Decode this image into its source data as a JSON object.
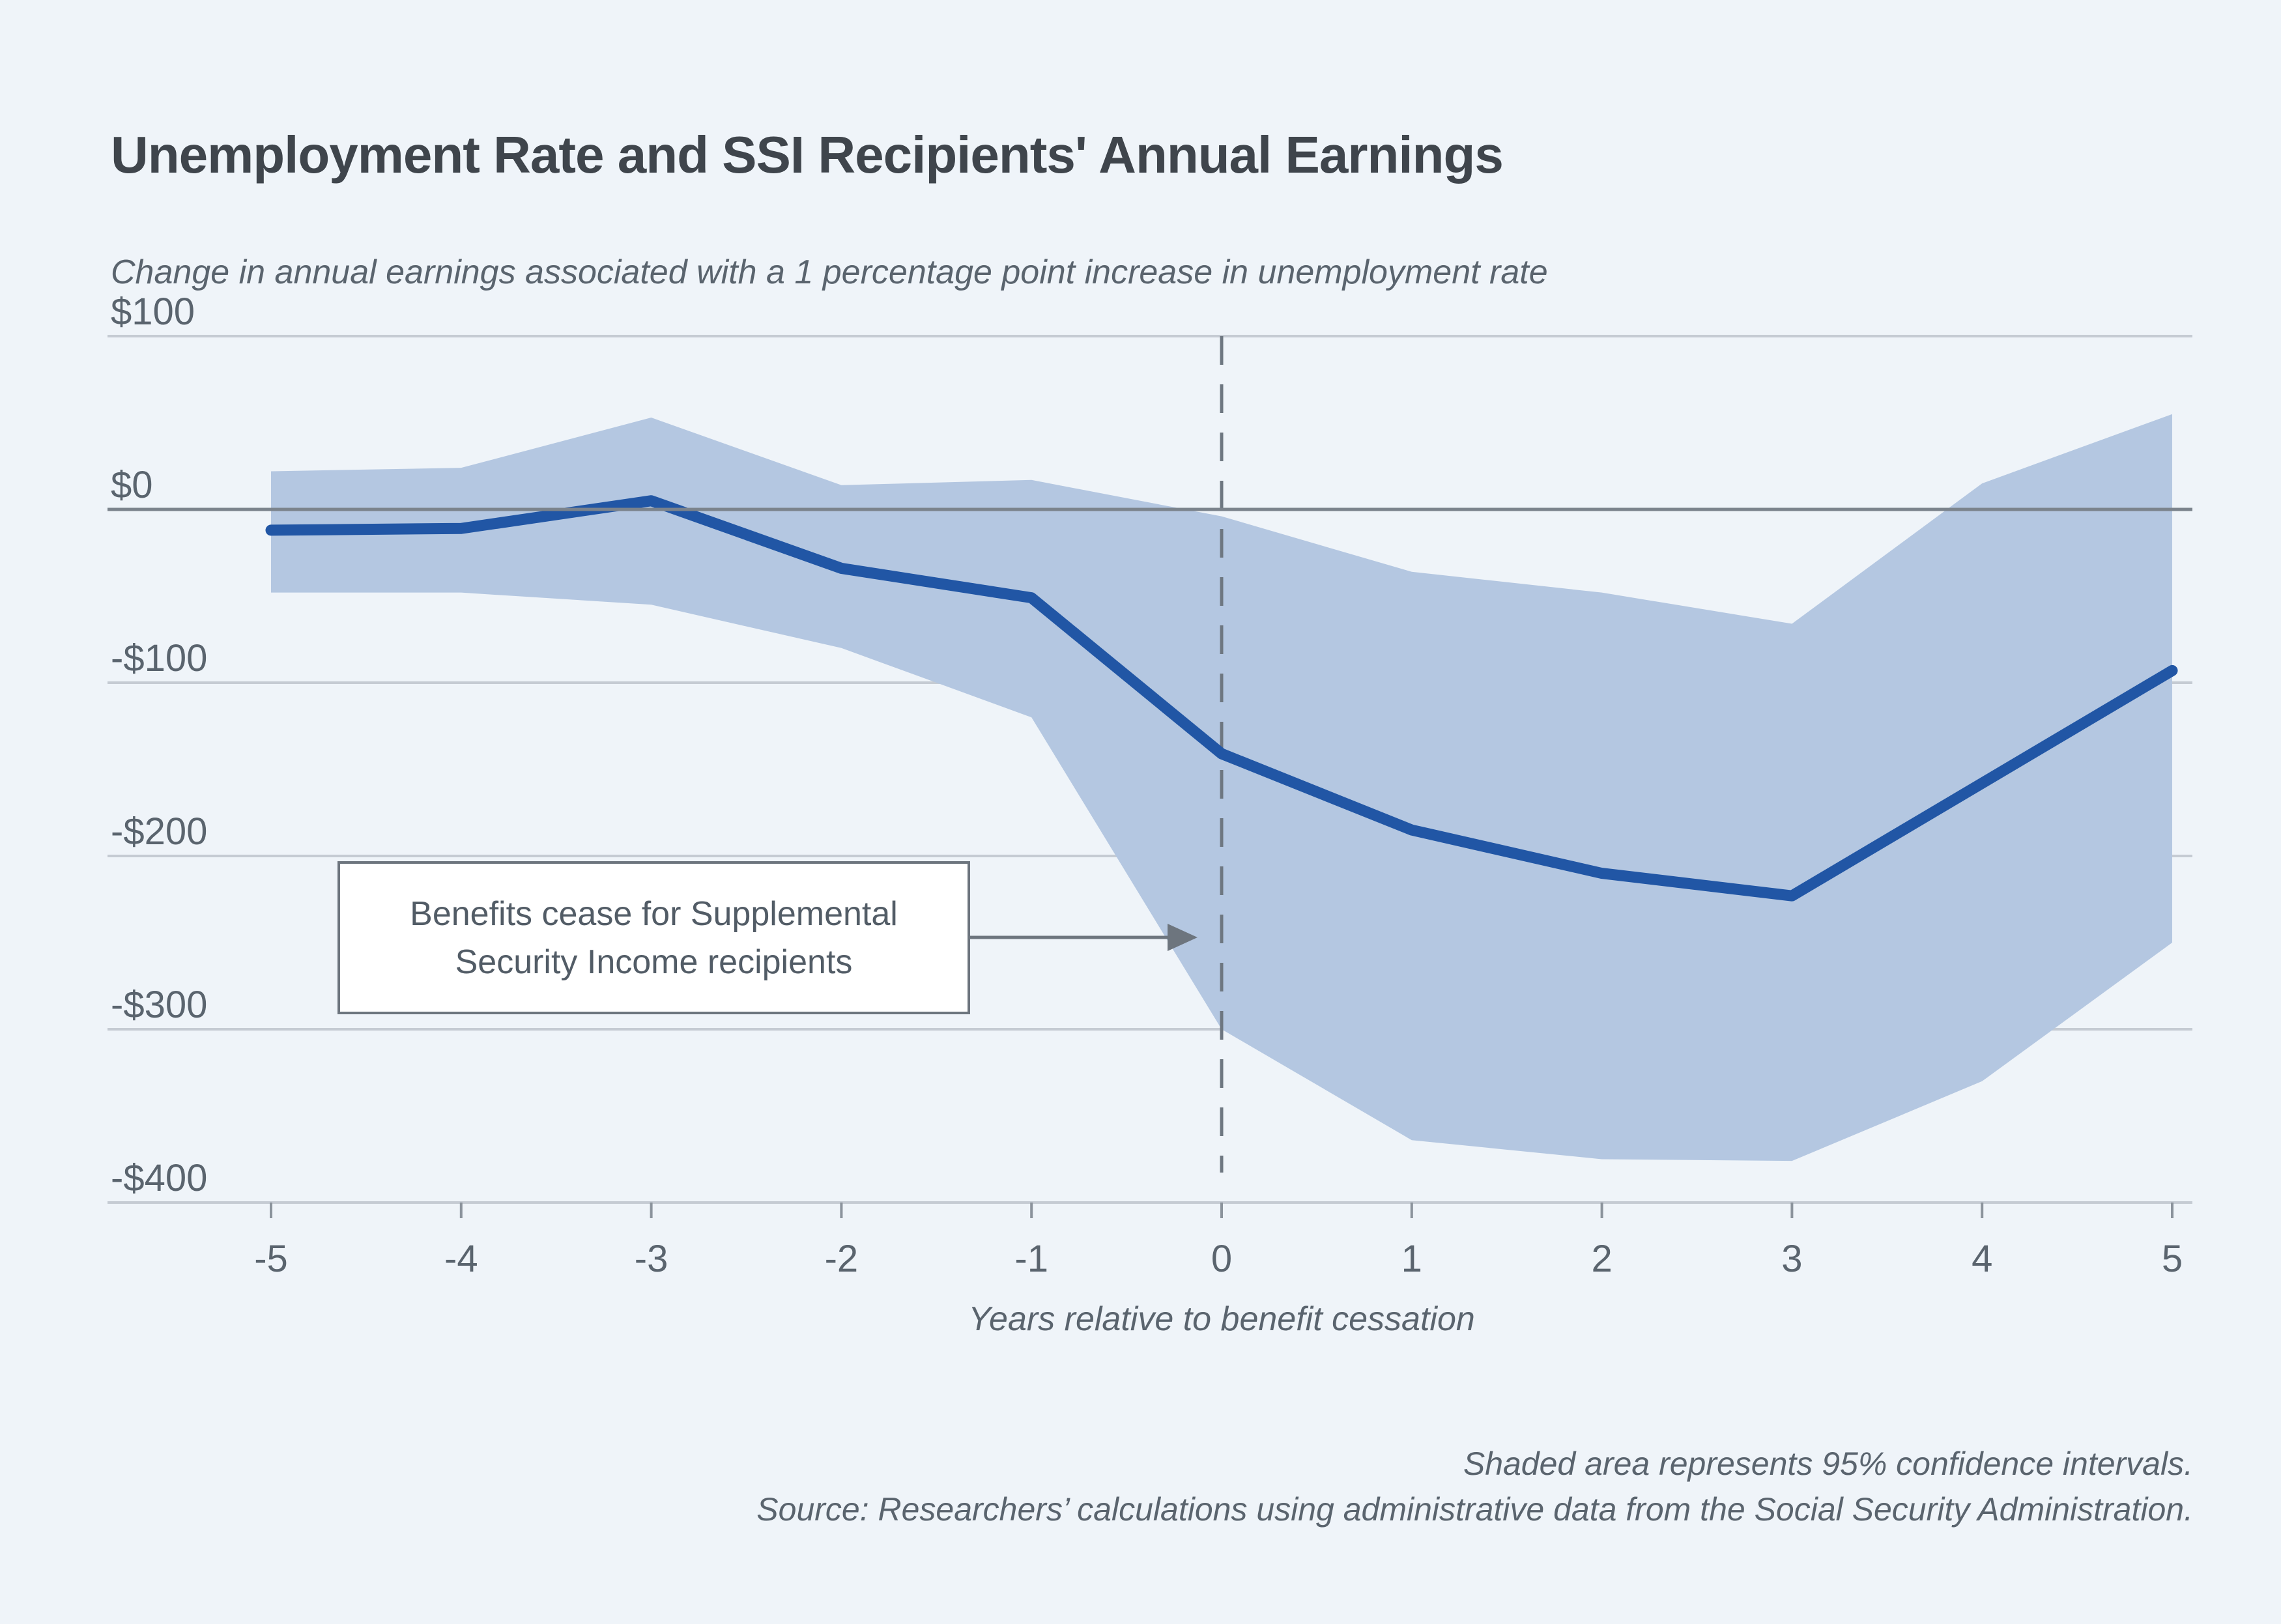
{
  "page": {
    "background": "#eff4f9"
  },
  "chart_data": {
    "type": "line",
    "title": "Unemployment Rate and SSI Recipients' Annual Earnings",
    "subtitle": "Change in annual earnings associated with a 1 percentage point increase in unemployment rate",
    "xlabel": "Years relative to benefit cessation",
    "x": [
      -5,
      -4,
      -3,
      -2,
      -1,
      0,
      1,
      2,
      3,
      4,
      5
    ],
    "series": [
      {
        "name": "Change in annual earnings",
        "role": "line",
        "values": [
          -12,
          -11,
          5,
          -34,
          -51,
          -141,
          -185,
          -210,
          -223,
          -158,
          -93
        ]
      },
      {
        "name": "95% confidence interval upper bound",
        "role": "band-upper",
        "values": [
          22,
          24,
          53,
          14,
          17,
          -4,
          -36,
          -48,
          -66,
          15,
          55
        ]
      },
      {
        "name": "95% confidence interval lower bound",
        "role": "band-lower",
        "values": [
          -48,
          -48,
          -55,
          -80,
          -120,
          -300,
          -364,
          -375,
          -376,
          -330,
          -250
        ]
      }
    ],
    "xlim": [
      -5,
      5
    ],
    "ylim": [
      -400,
      100
    ],
    "grid": "horizontal",
    "legend": "none",
    "y_axis": {
      "ticks": [
        {
          "v": 100,
          "label": "$100"
        },
        {
          "v": 0,
          "label": "$0"
        },
        {
          "v": -100,
          "label": "-$100"
        },
        {
          "v": -200,
          "label": "-$200"
        },
        {
          "v": -300,
          "label": "-$300"
        },
        {
          "v": -400,
          "label": "-$400"
        }
      ]
    },
    "x_axis": {
      "ticks": [
        {
          "v": -5,
          "label": "-5"
        },
        {
          "v": -4,
          "label": "-4"
        },
        {
          "v": -3,
          "label": "-3"
        },
        {
          "v": -2,
          "label": "-2"
        },
        {
          "v": -1,
          "label": "-1"
        },
        {
          "v": 0,
          "label": "0"
        },
        {
          "v": 1,
          "label": "1"
        },
        {
          "v": 2,
          "label": "2"
        },
        {
          "v": 3,
          "label": "3"
        },
        {
          "v": 4,
          "label": "4"
        },
        {
          "v": 5,
          "label": "5"
        }
      ]
    },
    "reference_lines": {
      "zero_line_value": 0,
      "event_line_x": 0
    },
    "annotation": {
      "line1": "Benefits cease for Supplemental",
      "line2": "Security Income recipients",
      "points_to_x": 0
    },
    "notes": [
      "Shaded area represents 95% confidence intervals.",
      "Source: Researchers’ calculations using administrative data from the Social Security Administration."
    ],
    "colors": {
      "background": "#eff4f9",
      "line": "#2156a5",
      "band": "#b4c7e1",
      "grid": "#c5cbd3",
      "zero_line": "#7b838c",
      "dashed_line": "#6e7781",
      "tick": "#8b939c",
      "text": "#5a646e",
      "title": "#3f454c",
      "annotation_border": "#6d757e"
    }
  }
}
